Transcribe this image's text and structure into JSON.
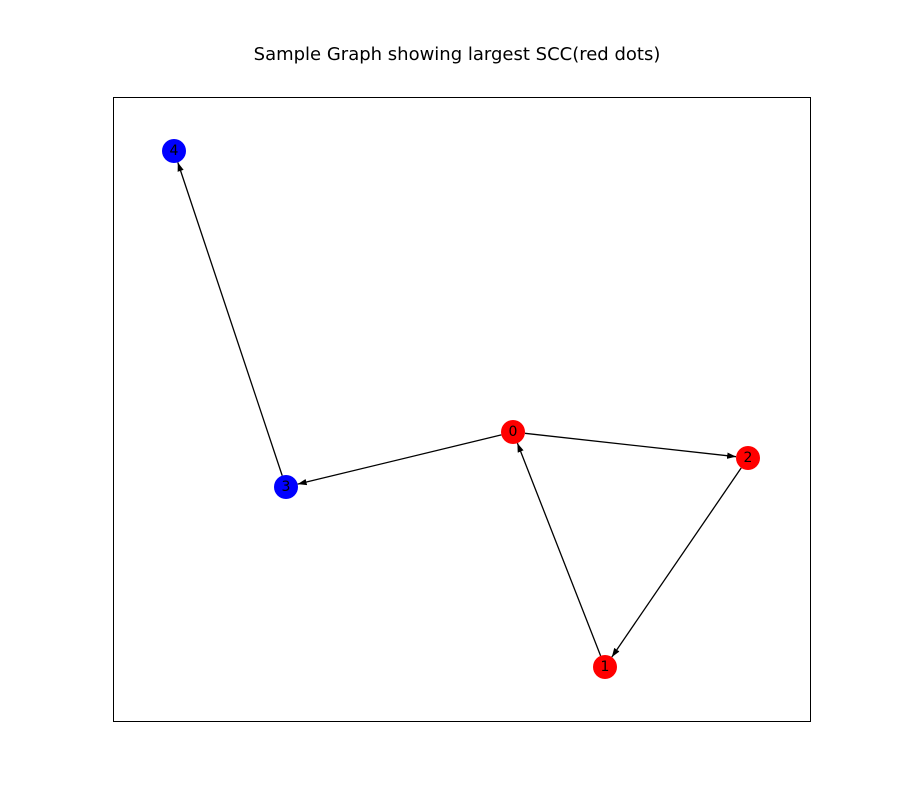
{
  "title": "Sample Graph showing largest SCC(red dots)",
  "colors": {
    "scc": "#ff0000",
    "other": "#0000ff",
    "edge": "#000000",
    "frame": "#000000"
  },
  "graph": {
    "directed": true,
    "nodes": [
      {
        "id": "0",
        "label": "0",
        "in_largest_scc": true
      },
      {
        "id": "1",
        "label": "1",
        "in_largest_scc": true
      },
      {
        "id": "2",
        "label": "2",
        "in_largest_scc": true
      },
      {
        "id": "3",
        "label": "3",
        "in_largest_scc": false
      },
      {
        "id": "4",
        "label": "4",
        "in_largest_scc": false
      }
    ],
    "edges": [
      {
        "from": "0",
        "to": "2"
      },
      {
        "from": "0",
        "to": "3"
      },
      {
        "from": "1",
        "to": "0"
      },
      {
        "from": "2",
        "to": "1"
      },
      {
        "from": "3",
        "to": "4"
      }
    ]
  }
}
